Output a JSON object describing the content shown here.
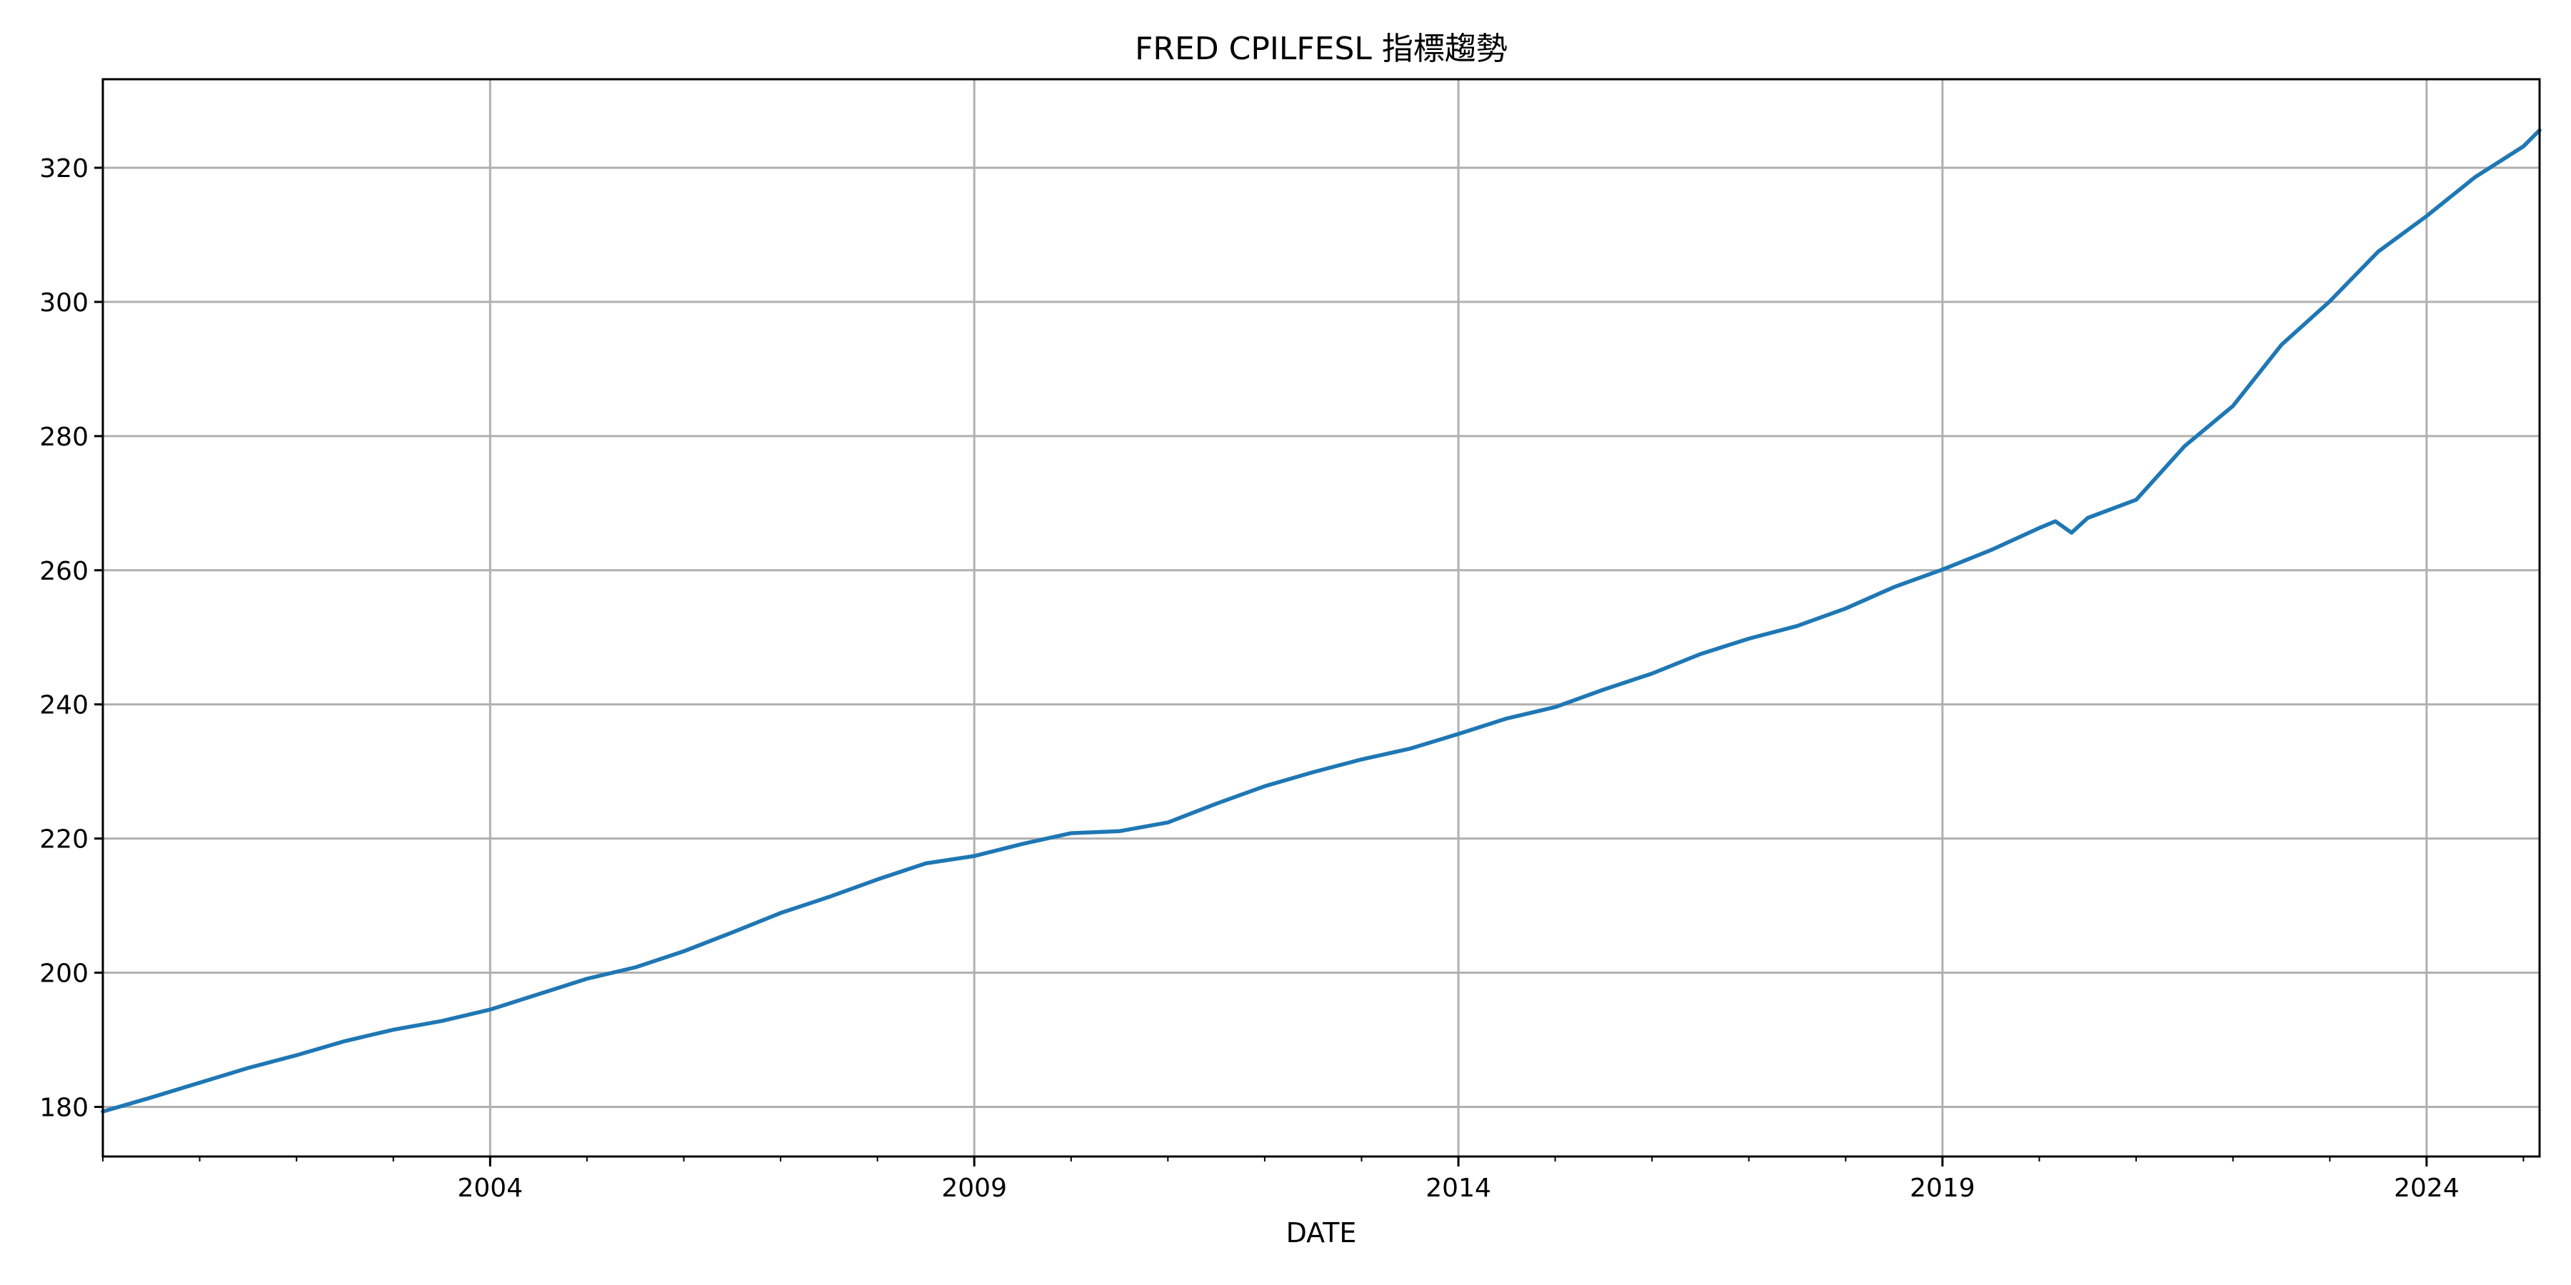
{
  "chart_data": {
    "type": "line",
    "title": "FRED CPILFESL 指標趨勢",
    "xlabel": "DATE",
    "ylabel": "",
    "x_range": [
      "2000-01-01",
      "2025-03-01"
    ],
    "ylim": [
      172.6,
      333.2
    ],
    "x_ticks": [
      {
        "date": "2004-01-01",
        "label": "2004"
      },
      {
        "date": "2009-01-01",
        "label": "2009"
      },
      {
        "date": "2014-01-01",
        "label": "2014"
      },
      {
        "date": "2019-01-01",
        "label": "2019"
      },
      {
        "date": "2024-01-01",
        "label": "2024"
      }
    ],
    "y_ticks": [
      180,
      200,
      220,
      240,
      260,
      280,
      300,
      320
    ],
    "grid": true,
    "legend": "none",
    "series": [
      {
        "color": "#1f77b4",
        "points": [
          [
            "2000-01-01",
            179.3
          ],
          [
            "2000-07-01",
            181.4
          ],
          [
            "2001-01-01",
            183.6
          ],
          [
            "2001-07-01",
            185.8
          ],
          [
            "2002-01-01",
            187.7
          ],
          [
            "2002-07-01",
            189.8
          ],
          [
            "2003-01-01",
            191.5
          ],
          [
            "2003-07-01",
            192.8
          ],
          [
            "2004-01-01",
            194.5
          ],
          [
            "2004-07-01",
            196.8
          ],
          [
            "2005-01-01",
            199.1
          ],
          [
            "2005-07-01",
            200.8
          ],
          [
            "2006-01-01",
            203.2
          ],
          [
            "2006-07-01",
            206.0
          ],
          [
            "2007-01-01",
            208.9
          ],
          [
            "2007-07-01",
            211.3
          ],
          [
            "2008-01-01",
            213.9
          ],
          [
            "2008-07-01",
            216.3
          ],
          [
            "2009-01-01",
            217.4
          ],
          [
            "2009-07-01",
            219.2
          ],
          [
            "2010-01-01",
            220.8
          ],
          [
            "2010-07-01",
            221.1
          ],
          [
            "2011-01-01",
            222.4
          ],
          [
            "2011-07-01",
            225.2
          ],
          [
            "2012-01-01",
            227.8
          ],
          [
            "2012-07-01",
            229.9
          ],
          [
            "2013-01-01",
            231.8
          ],
          [
            "2013-07-01",
            233.4
          ],
          [
            "2014-01-01",
            235.6
          ],
          [
            "2014-07-01",
            237.9
          ],
          [
            "2015-01-01",
            239.6
          ],
          [
            "2015-07-01",
            242.2
          ],
          [
            "2016-01-01",
            244.6
          ],
          [
            "2016-07-01",
            247.5
          ],
          [
            "2017-01-01",
            249.8
          ],
          [
            "2017-07-01",
            251.7
          ],
          [
            "2018-01-01",
            254.3
          ],
          [
            "2018-07-01",
            257.5
          ],
          [
            "2019-01-01",
            260.1
          ],
          [
            "2019-07-01",
            263.0
          ],
          [
            "2020-01-01",
            266.3
          ],
          [
            "2020-03-01",
            267.3
          ],
          [
            "2020-05-01",
            265.6
          ],
          [
            "2020-07-01",
            267.8
          ],
          [
            "2021-01-01",
            270.5
          ],
          [
            "2021-07-01",
            278.5
          ],
          [
            "2022-01-01",
            284.5
          ],
          [
            "2022-07-01",
            293.6
          ],
          [
            "2023-01-01",
            300.1
          ],
          [
            "2023-07-01",
            307.5
          ],
          [
            "2024-01-01",
            312.8
          ],
          [
            "2024-07-01",
            318.6
          ],
          [
            "2025-01-01",
            323.2
          ],
          [
            "2025-03-01",
            325.6
          ]
        ]
      }
    ]
  }
}
